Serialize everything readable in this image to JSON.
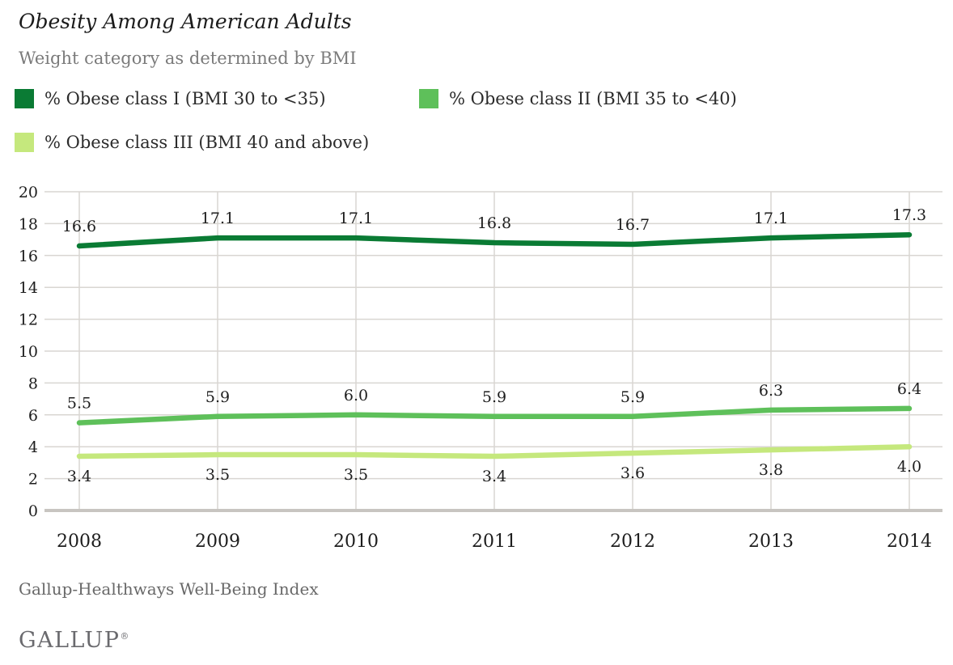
{
  "header": {
    "title": "Obesity Among American Adults",
    "subtitle": "Weight category as determined by BMI"
  },
  "legend": {
    "items": [
      {
        "label": "% Obese class I (BMI 30 to <35)",
        "color": "#0a7b34"
      },
      {
        "label": "% Obese class II (BMI 35 to <40)",
        "color": "#5ec05a"
      },
      {
        "label": "% Obese class III (BMI 40 and above)",
        "color": "#c5e87d"
      }
    ]
  },
  "chart_data": {
    "type": "line",
    "title": "Obesity Among American Adults",
    "subtitle": "Weight category as determined by BMI",
    "x": [
      2008,
      2009,
      2010,
      2011,
      2012,
      2013,
      2014
    ],
    "series": [
      {
        "name": "% Obese class I (BMI 30 to <35)",
        "values": [
          16.6,
          17.1,
          17.1,
          16.8,
          16.7,
          17.1,
          17.3
        ],
        "color": "#0a7b34",
        "label_position": "above"
      },
      {
        "name": "% Obese class II (BMI 35 to <40)",
        "values": [
          5.5,
          5.9,
          6.0,
          5.9,
          5.9,
          6.3,
          6.4
        ],
        "color": "#5ec05a",
        "label_position": "above"
      },
      {
        "name": "% Obese class III (BMI 40 and above)",
        "values": [
          3.4,
          3.5,
          3.5,
          3.4,
          3.6,
          3.8,
          4.0
        ],
        "color": "#c5e87d",
        "label_position": "below"
      }
    ],
    "xlabel": "",
    "ylabel": "",
    "ylim": [
      0,
      20
    ],
    "ytick_step": 2,
    "grid": true,
    "legend_position": "top",
    "colors": {
      "gridline": "#d9d6d2",
      "baseline": "#c8c5c1",
      "tick_text": "#1d1d1d",
      "data_label_text": "#1d1d1d"
    }
  },
  "footer": {
    "source": "Gallup-Healthways Well-Being Index",
    "logo": "GALLUP",
    "registered_mark": "®"
  }
}
